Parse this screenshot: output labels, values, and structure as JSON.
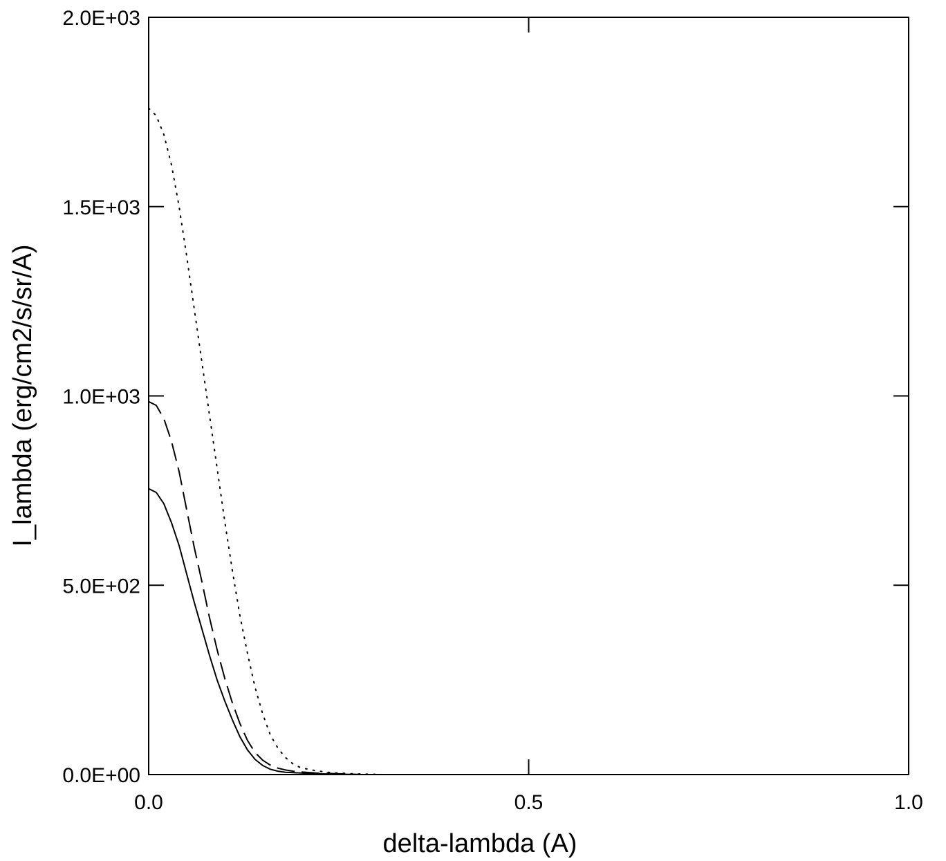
{
  "chart_data": {
    "type": "line",
    "title": "",
    "xlabel": "delta-lambda (A)",
    "ylabel": "I_lambda (erg/cm2/s/sr/A)",
    "xlim": [
      0.0,
      1.0
    ],
    "ylim": [
      0.0,
      2000.0
    ],
    "x_ticks": [
      0.0,
      0.5,
      1.0
    ],
    "x_tick_labels": [
      "0.0",
      "0.5",
      "1.0"
    ],
    "y_ticks": [
      0,
      500,
      1000,
      1500,
      2000
    ],
    "y_tick_labels": [
      "0.0E+00",
      "5.0E+02",
      "1.0E+03",
      "1.5E+03",
      "2.0E+03"
    ],
    "grid": false,
    "legend": "none",
    "series": [
      {
        "style": "solid",
        "x": [
          0.0,
          0.01,
          0.02,
          0.03,
          0.04,
          0.05,
          0.06,
          0.07,
          0.08,
          0.09,
          0.1,
          0.11,
          0.12,
          0.13,
          0.14,
          0.15,
          0.16,
          0.17,
          0.18,
          0.2,
          0.22,
          0.25,
          0.28
        ],
        "y": [
          755,
          745,
          715,
          665,
          605,
          530,
          455,
          385,
          315,
          250,
          195,
          145,
          100,
          65,
          40,
          24,
          14,
          9,
          6,
          4,
          2,
          1,
          0
        ]
      },
      {
        "style": "dashed",
        "x": [
          0.0,
          0.01,
          0.02,
          0.03,
          0.04,
          0.05,
          0.06,
          0.07,
          0.08,
          0.09,
          0.1,
          0.11,
          0.12,
          0.13,
          0.14,
          0.15,
          0.16,
          0.17,
          0.18,
          0.19,
          0.2,
          0.22,
          0.25,
          0.28
        ],
        "y": [
          985,
          975,
          940,
          880,
          800,
          700,
          600,
          510,
          415,
          330,
          255,
          190,
          135,
          90,
          58,
          38,
          25,
          17,
          12,
          9,
          7,
          4,
          2,
          0
        ]
      },
      {
        "style": "dotted",
        "x": [
          0.0,
          0.01,
          0.02,
          0.03,
          0.04,
          0.05,
          0.06,
          0.07,
          0.08,
          0.09,
          0.1,
          0.11,
          0.12,
          0.13,
          0.14,
          0.15,
          0.16,
          0.17,
          0.18,
          0.19,
          0.2,
          0.22,
          0.24,
          0.27,
          0.31
        ],
        "y": [
          1760,
          1740,
          1690,
          1610,
          1500,
          1370,
          1230,
          1090,
          950,
          810,
          670,
          540,
          420,
          320,
          230,
          160,
          105,
          70,
          45,
          28,
          18,
          10,
          5,
          2,
          0
        ]
      }
    ]
  }
}
